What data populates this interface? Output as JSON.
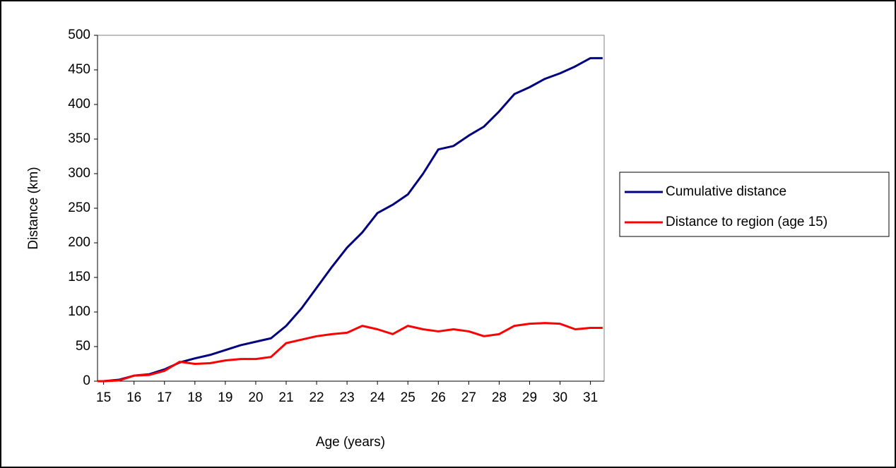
{
  "chart_data": {
    "type": "line",
    "x_label": "Age (years)",
    "y_label": "Distance (km)",
    "x": [
      14.8,
      15,
      15.5,
      16,
      16.5,
      17,
      17.5,
      18,
      18.5,
      19,
      19.5,
      20,
      20.5,
      21,
      21.5,
      22,
      22.5,
      23,
      23.5,
      24,
      24.5,
      25,
      25.5,
      26,
      26.5,
      27,
      27.5,
      28,
      28.5,
      29,
      29.5,
      30,
      30.5,
      31,
      31.4
    ],
    "series": [
      {
        "name": "Cumulative distance",
        "color": "#000080",
        "values": [
          0,
          0,
          2,
          8,
          10,
          17,
          27,
          33,
          38,
          45,
          52,
          57,
          62,
          80,
          105,
          135,
          165,
          193,
          215,
          243,
          255,
          270,
          300,
          335,
          340,
          355,
          368,
          390,
          415,
          425,
          437,
          445,
          455,
          467,
          467
        ]
      },
      {
        "name": "Distance to region (age 15)",
        "color": "#ff0000",
        "values": [
          0,
          0,
          1,
          8,
          9,
          15,
          28,
          25,
          26,
          30,
          32,
          32,
          35,
          55,
          60,
          65,
          68,
          70,
          80,
          75,
          68,
          80,
          75,
          72,
          75,
          72,
          65,
          68,
          80,
          83,
          84,
          83,
          75,
          77,
          77
        ]
      }
    ],
    "xlim": [
      14.8,
      31.45
    ],
    "ylim": [
      0,
      500
    ],
    "xticks": [
      15,
      16,
      17,
      18,
      19,
      20,
      21,
      22,
      23,
      24,
      25,
      26,
      27,
      28,
      29,
      30,
      31
    ],
    "yticks": [
      0,
      50,
      100,
      150,
      200,
      250,
      300,
      350,
      400,
      450,
      500
    ],
    "legend": "right"
  }
}
